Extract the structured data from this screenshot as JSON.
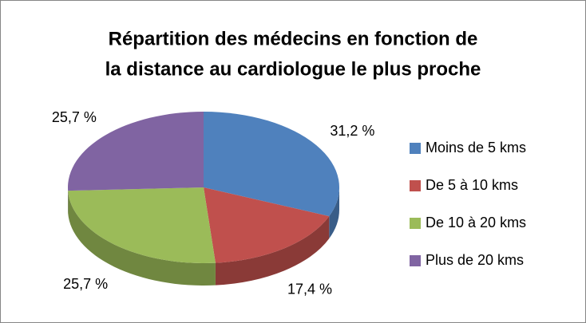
{
  "chart_data": {
    "type": "pie3d",
    "title": [
      "Répartition des médecins en fonction de",
      "la distance au cardiologue le plus proche"
    ],
    "categories": [
      "Moins de 5 kms",
      "De 5 à 10 kms",
      "De 10 à 20 kms",
      "Plus de 20 kms"
    ],
    "values": [
      31.2,
      17.4,
      25.7,
      25.7
    ],
    "value_labels": [
      "31,2 %",
      "17,4 %",
      "25,7 %",
      "25,7 %"
    ],
    "colors": [
      "#4f81bd",
      "#c0504d",
      "#9bbb59",
      "#8064a2"
    ],
    "legend": "right"
  }
}
